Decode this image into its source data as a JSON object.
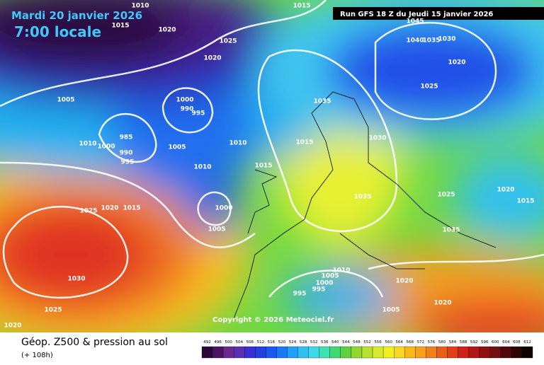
{
  "header": {
    "date": "Mardi 20 janvier 2026",
    "time": "7:00 locale",
    "run": "Run GFS 18 Z du Jeudi 15 janvier 2026"
  },
  "copyright": "Copyright © 2026 Meteociel.fr",
  "caption": {
    "title": "Géop. Z500 & pression au sol",
    "lead": "(+ 108h)"
  },
  "isobar_labels": [
    "1010",
    "1015",
    "1020",
    "1015",
    "1025",
    "1020",
    "1005",
    "1000",
    "990",
    "995",
    "985",
    "1000",
    "990",
    "995",
    "1010",
    "1005",
    "1010",
    "1010",
    "1015",
    "1035",
    "1015",
    "1030",
    "1035",
    "1025",
    "1020",
    "1015",
    "1035",
    "1025",
    "1020",
    "1015",
    "1000",
    "1005",
    "1030",
    "1025",
    "1020",
    "1010",
    "1005",
    "1000",
    "995",
    "995",
    "1020",
    "1020",
    "1005",
    "1045",
    "1040",
    "1035",
    "1030",
    "1020",
    "1025"
  ],
  "scale": {
    "labels": [
      "492",
      "496",
      "500",
      "504",
      "508",
      "512",
      "516",
      "520",
      "524",
      "528",
      "532",
      "536",
      "540",
      "544",
      "548",
      "552",
      "556",
      "560",
      "564",
      "568",
      "572",
      "576",
      "580",
      "584",
      "588",
      "592",
      "596",
      "600",
      "604",
      "608",
      "612"
    ],
    "colors": [
      "#2a0838",
      "#4a1460",
      "#6a2890",
      "#5a30b0",
      "#3a30d0",
      "#2040e0",
      "#1a58f0",
      "#1a78f8",
      "#20a0f8",
      "#30c0f0",
      "#40d8e8",
      "#40e0b0",
      "#40d870",
      "#60d040",
      "#90d830",
      "#b8e030",
      "#d8e830",
      "#f0f020",
      "#f8d820",
      "#f8b818",
      "#f8a018",
      "#f08018",
      "#e86018",
      "#e04018",
      "#d02018",
      "#b01818",
      "#901010",
      "#701010",
      "#500808",
      "#300404",
      "#100000"
    ]
  }
}
